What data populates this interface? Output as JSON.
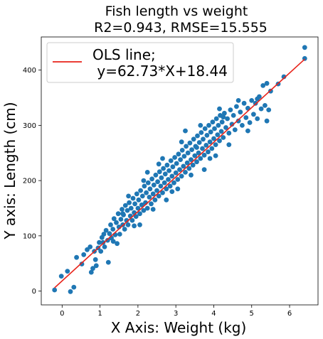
{
  "chart_data": {
    "type": "scatter",
    "title_line1": "Fish length vs weight",
    "title_line2": "R2=0.943, RMSE=15.555",
    "xlabel": "X Axis: Weight (kg)",
    "ylabel": "Y axis: Length (cm)",
    "xlim": [
      -0.55,
      6.75
    ],
    "ylim": [
      -25,
      460
    ],
    "x_ticks": [
      0,
      1,
      2,
      3,
      4,
      5,
      6
    ],
    "y_ticks": [
      0,
      100,
      200,
      300,
      400
    ],
    "grid": false,
    "legend": {
      "placement": "top-left",
      "line1": "OLS line;",
      "line2": " y=62.73*X+18.44"
    },
    "colors": {
      "points": "#1f77b4",
      "line": "#e8231a"
    },
    "regression": {
      "slope": 62.73,
      "intercept": 18.44,
      "x_range": [
        -0.2,
        6.4
      ]
    },
    "point_spread_description_free": true,
    "points": [
      [
        -0.2,
        2
      ],
      [
        -0.02,
        27
      ],
      [
        0.14,
        36
      ],
      [
        0.22,
        -1
      ],
      [
        0.31,
        7
      ],
      [
        0.38,
        61
      ],
      [
        0.52,
        49
      ],
      [
        0.57,
        66
      ],
      [
        0.66,
        75
      ],
      [
        0.74,
        80
      ],
      [
        0.77,
        34
      ],
      [
        0.81,
        41
      ],
      [
        0.85,
        72
      ],
      [
        0.88,
        57
      ],
      [
        0.9,
        46
      ],
      [
        0.95,
        78
      ],
      [
        0.98,
        88
      ],
      [
        1.02,
        72
      ],
      [
        1.05,
        97
      ],
      [
        1.08,
        88
      ],
      [
        1.12,
        80
      ],
      [
        1.16,
        110
      ],
      [
        1.2,
        92
      ],
      [
        1.22,
        52
      ],
      [
        1.25,
        104
      ],
      [
        1.28,
        120
      ],
      [
        1.3,
        96
      ],
      [
        1.34,
        112
      ],
      [
        1.37,
        131
      ],
      [
        1.4,
        102
      ],
      [
        1.43,
        124
      ],
      [
        1.45,
        86
      ],
      [
        1.48,
        140
      ],
      [
        1.5,
        116
      ],
      [
        1.52,
        103
      ],
      [
        1.55,
        130
      ],
      [
        1.58,
        148
      ],
      [
        1.6,
        120
      ],
      [
        1.62,
        138
      ],
      [
        1.65,
        112
      ],
      [
        1.67,
        155
      ],
      [
        1.7,
        128
      ],
      [
        1.72,
        146
      ],
      [
        1.74,
        120
      ],
      [
        1.77,
        160
      ],
      [
        1.8,
        136
      ],
      [
        1.82,
        150
      ],
      [
        1.85,
        128
      ],
      [
        1.87,
        168
      ],
      [
        1.9,
        142
      ],
      [
        1.92,
        158
      ],
      [
        1.95,
        135
      ],
      [
        1.97,
        176
      ],
      [
        2.0,
        150
      ],
      [
        2.02,
        165
      ],
      [
        2.05,
        140
      ],
      [
        2.07,
        182
      ],
      [
        2.1,
        156
      ],
      [
        2.12,
        172
      ],
      [
        2.15,
        146
      ],
      [
        2.17,
        190
      ],
      [
        2.2,
        160
      ],
      [
        2.22,
        178
      ],
      [
        2.25,
        150
      ],
      [
        2.27,
        196
      ],
      [
        2.3,
        170
      ],
      [
        2.32,
        185
      ],
      [
        2.35,
        158
      ],
      [
        2.37,
        203
      ],
      [
        2.4,
        176
      ],
      [
        2.42,
        192
      ],
      [
        2.45,
        165
      ],
      [
        2.47,
        210
      ],
      [
        2.5,
        182
      ],
      [
        2.52,
        198
      ],
      [
        2.55,
        172
      ],
      [
        2.57,
        216
      ],
      [
        2.6,
        190
      ],
      [
        2.62,
        205
      ],
      [
        2.65,
        178
      ],
      [
        2.67,
        222
      ],
      [
        2.7,
        196
      ],
      [
        2.72,
        212
      ],
      [
        2.75,
        185
      ],
      [
        2.77,
        228
      ],
      [
        2.8,
        202
      ],
      [
        2.82,
        218
      ],
      [
        2.85,
        190
      ],
      [
        2.87,
        236
      ],
      [
        2.9,
        208
      ],
      [
        2.92,
        225
      ],
      [
        2.95,
        196
      ],
      [
        2.97,
        242
      ],
      [
        3.0,
        214
      ],
      [
        3.02,
        231
      ],
      [
        3.05,
        202
      ],
      [
        3.07,
        248
      ],
      [
        3.1,
        220
      ],
      [
        3.12,
        238
      ],
      [
        3.15,
        208
      ],
      [
        3.17,
        255
      ],
      [
        3.2,
        226
      ],
      [
        3.22,
        244
      ],
      [
        3.25,
        215
      ],
      [
        3.27,
        262
      ],
      [
        3.3,
        232
      ],
      [
        3.32,
        250
      ],
      [
        3.35,
        222
      ],
      [
        3.37,
        268
      ],
      [
        3.4,
        238
      ],
      [
        3.42,
        256
      ],
      [
        3.45,
        228
      ],
      [
        3.47,
        275
      ],
      [
        3.5,
        245
      ],
      [
        3.52,
        262
      ],
      [
        3.55,
        234
      ],
      [
        3.57,
        281
      ],
      [
        3.6,
        250
      ],
      [
        3.62,
        269
      ],
      [
        3.65,
        240
      ],
      [
        3.67,
        287
      ],
      [
        3.7,
        258
      ],
      [
        3.72,
        275
      ],
      [
        3.75,
        246
      ],
      [
        3.77,
        294
      ],
      [
        3.8,
        264
      ],
      [
        3.82,
        282
      ],
      [
        3.85,
        252
      ],
      [
        3.87,
        300
      ],
      [
        3.9,
        270
      ],
      [
        3.92,
        288
      ],
      [
        3.95,
        258
      ],
      [
        3.97,
        306
      ],
      [
        4.0,
        276
      ],
      [
        4.02,
        294
      ],
      [
        4.05,
        265
      ],
      [
        4.07,
        312
      ],
      [
        4.1,
        283
      ],
      [
        4.12,
        300
      ],
      [
        4.15,
        272
      ],
      [
        4.17,
        318
      ],
      [
        4.2,
        289
      ],
      [
        4.22,
        306
      ],
      [
        4.25,
        278
      ],
      [
        4.28,
        322
      ],
      [
        4.32,
        296
      ],
      [
        4.36,
        312
      ],
      [
        4.4,
        286
      ],
      [
        4.44,
        328
      ],
      [
        4.48,
        302
      ],
      [
        4.52,
        318
      ],
      [
        4.56,
        292
      ],
      [
        4.6,
        334
      ],
      [
        4.65,
        308
      ],
      [
        4.7,
        324
      ],
      [
        4.75,
        300
      ],
      [
        4.8,
        340
      ],
      [
        4.85,
        314
      ],
      [
        4.9,
        331
      ],
      [
        4.95,
        305
      ],
      [
        5.0,
        345
      ],
      [
        5.05,
        320
      ],
      [
        5.1,
        340
      ],
      [
        5.15,
        312
      ],
      [
        5.2,
        352
      ],
      [
        5.25,
        330
      ],
      [
        5.3,
        372
      ],
      [
        5.35,
        336
      ],
      [
        5.4,
        376
      ],
      [
        5.45,
        328
      ],
      [
        5.5,
        362
      ],
      [
        5.7,
        375
      ],
      [
        5.85,
        388
      ],
      [
        6.4,
        441
      ],
      [
        6.4,
        421
      ],
      [
        1.1,
        103
      ],
      [
        1.35,
        90
      ],
      [
        1.6,
        140
      ],
      [
        1.9,
        118
      ],
      [
        2.15,
        200
      ],
      [
        2.4,
        148
      ],
      [
        2.65,
        240
      ],
      [
        2.9,
        180
      ],
      [
        3.15,
        270
      ],
      [
        3.4,
        210
      ],
      [
        3.65,
        300
      ],
      [
        3.9,
        240
      ],
      [
        4.15,
        330
      ],
      [
        4.4,
        265
      ],
      [
        4.65,
        345
      ],
      [
        4.9,
        290
      ],
      [
        5.15,
        348
      ],
      [
        5.4,
        308
      ],
      [
        2.55,
        230
      ],
      [
        3.05,
        185
      ],
      [
        3.55,
        260
      ],
      [
        4.05,
        245
      ],
      [
        2.05,
        120
      ],
      [
        1.75,
        172
      ],
      [
        2.25,
        215
      ],
      [
        2.75,
        165
      ],
      [
        3.25,
        290
      ],
      [
        3.75,
        220
      ],
      [
        4.25,
        315
      ]
    ]
  }
}
